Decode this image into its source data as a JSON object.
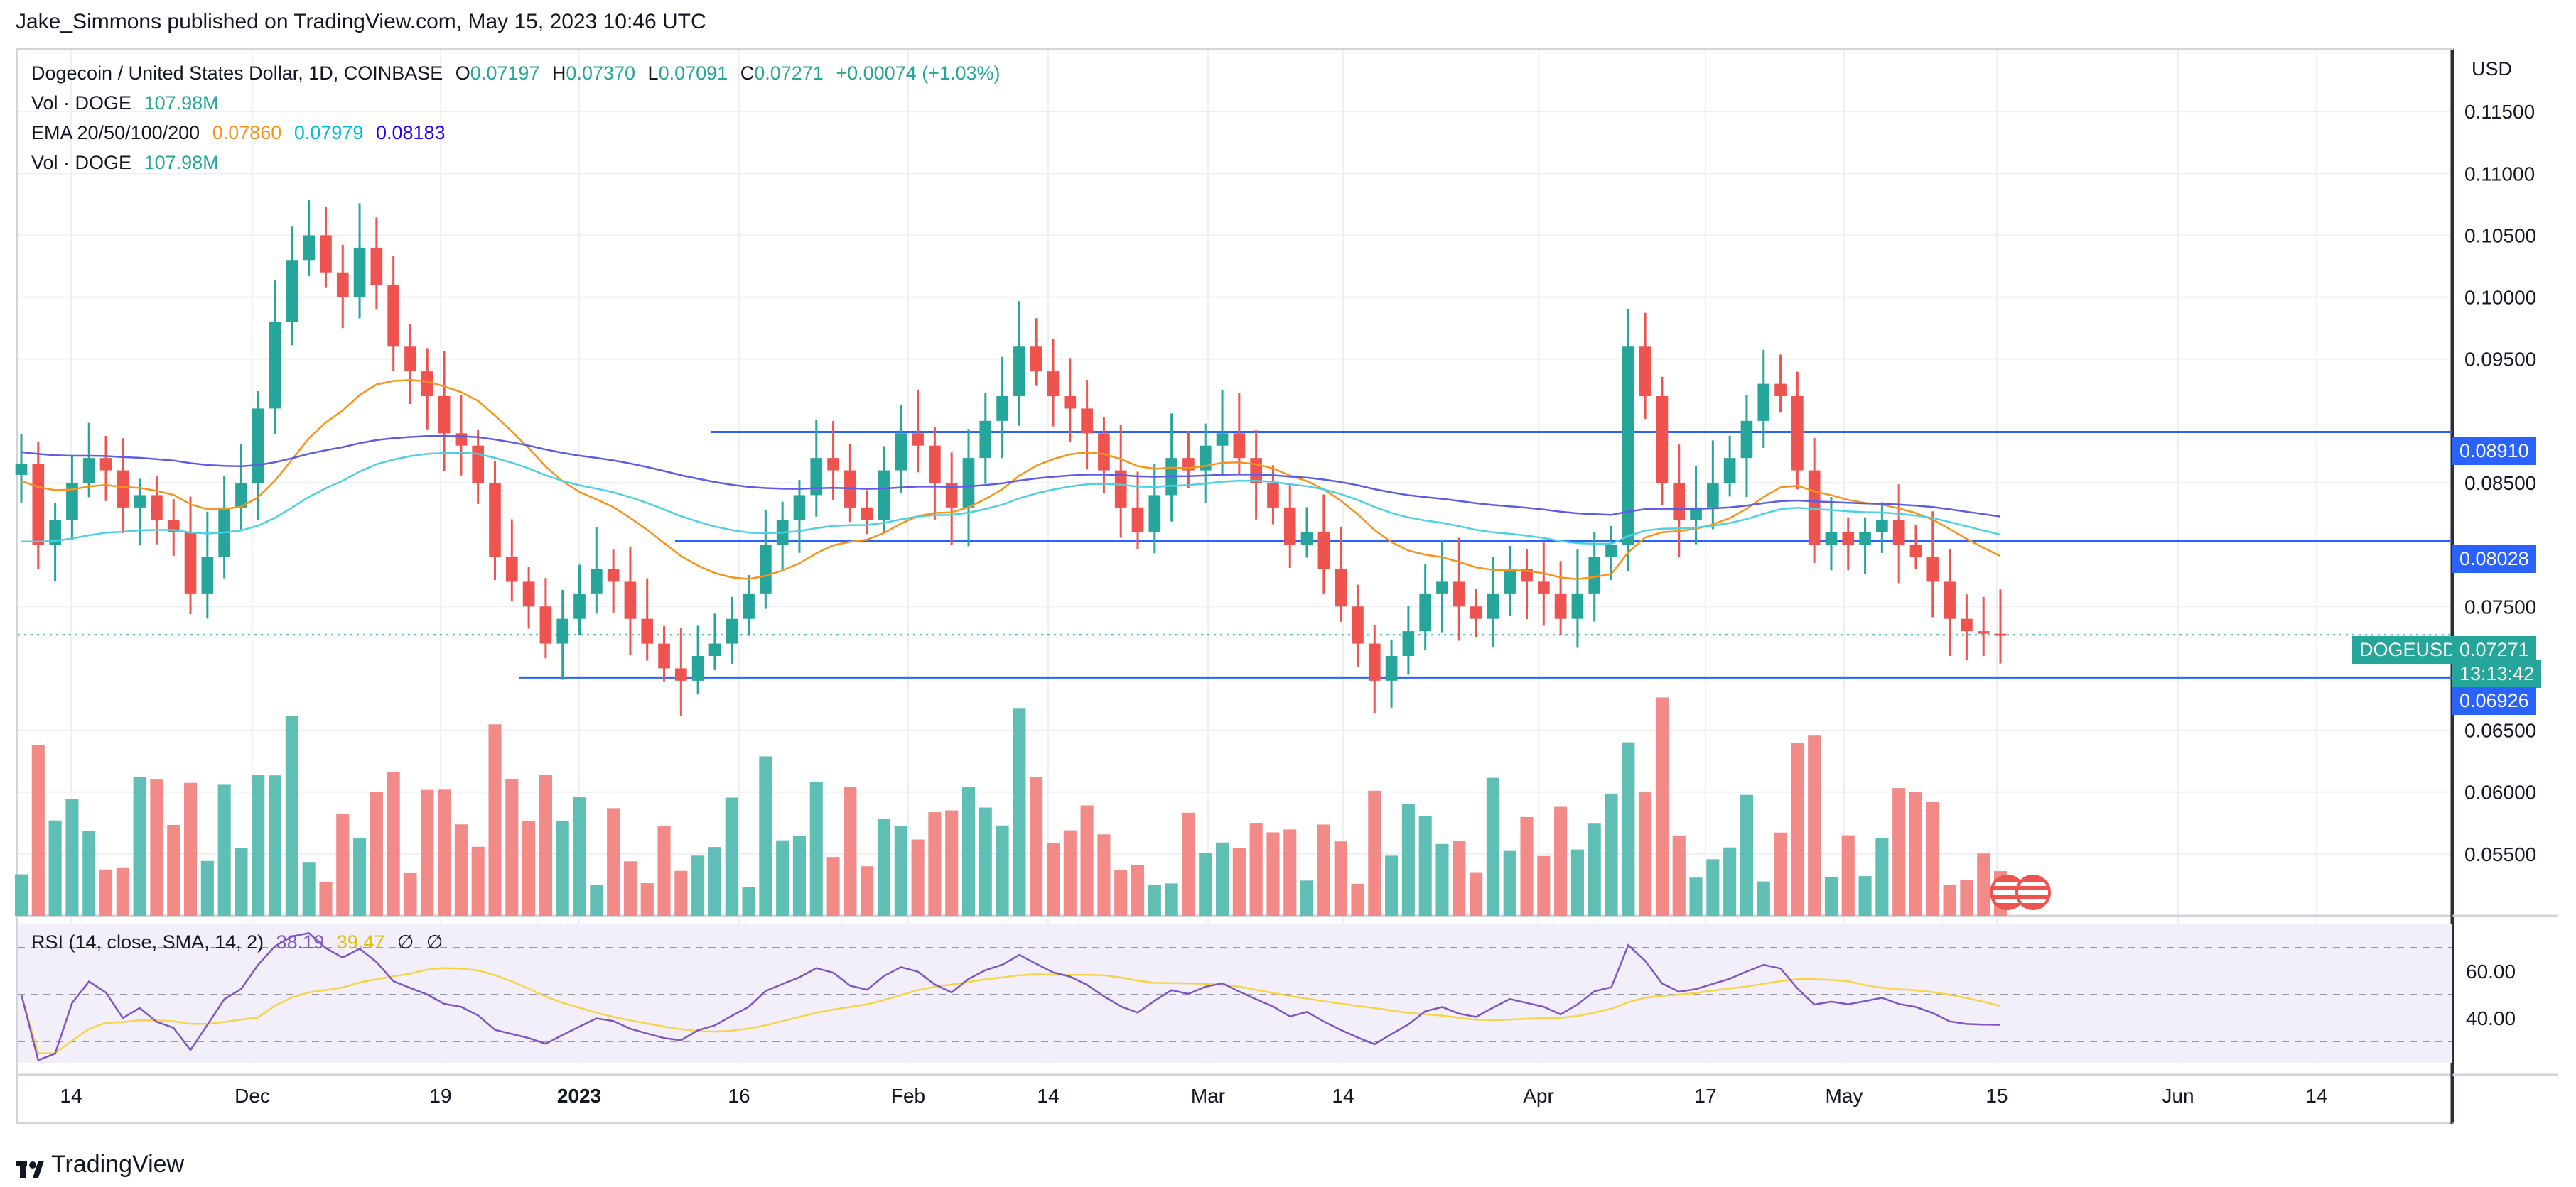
{
  "header": {
    "published_line": "Jake_Simmons published on TradingView.com, May 15, 2023 10:46 UTC"
  },
  "legend": {
    "symbol": "Dogecoin / United States Dollar, 1D, COINBASE",
    "o_label": "O",
    "o_value": "0.07197",
    "h_label": "H",
    "h_value": "0.07370",
    "l_label": "L",
    "l_value": "0.07091",
    "c_label": "C",
    "c_value": "0.07271",
    "change": "+0.00074 (+1.03%)",
    "vol1_label": "Vol · DOGE",
    "vol1_value": "107.98M",
    "ema_label": "EMA 20/50/100/200",
    "ema20": "0.07860",
    "ema50": "0.07979",
    "ema100": "0.08183",
    "vol2_label": "Vol · DOGE",
    "vol2_value": "107.98M",
    "rsi_label": "RSI (14, close, SMA, 14, 2)",
    "rsi_value": "38.19",
    "rsi_sma_value": "39.47",
    "rsi_hidden1": "∅",
    "rsi_hidden2": "∅"
  },
  "price_axis": {
    "currency": "USD"
  },
  "price_tags": {
    "level_high": "0.08910",
    "level_mid": "0.08028",
    "symbol": "DOGEUSD",
    "last": "0.07271",
    "countdown": "13:13:42",
    "level_low": "0.06926"
  },
  "footer": {
    "brand": "TradingView"
  },
  "colors": {
    "up": "#26a69a",
    "down": "#ef5350",
    "ema20": "#f7931a",
    "ema50": "#4dd0e1",
    "ema100": "#5c5ce6",
    "rsi": "#7e57c2",
    "rsi_sma": "#f5d547",
    "hline": "#2962ff",
    "tag": "#2962ff",
    "last": "#26a69a"
  },
  "chart_data": {
    "type": "candlestick",
    "symbol": "DOGEUSD",
    "interval": "1D",
    "x_ticks": [
      "14",
      "Dec",
      "19",
      "2023",
      "16",
      "Feb",
      "14",
      "Mar",
      "14",
      "Apr",
      "17",
      "May",
      "15",
      "Jun",
      "14"
    ],
    "y_ticks": [
      0.115,
      0.11,
      0.105,
      0.1,
      0.095,
      0.085,
      0.075,
      0.065,
      0.06,
      0.055
    ],
    "y_tick_labels": [
      "0.11500",
      "0.11000",
      "0.10500",
      "0.10000",
      "0.09500",
      "0.08500",
      "0.07500",
      "0.06500",
      "0.06000",
      "0.05500"
    ],
    "ylim": [
      0.05,
      0.12
    ],
    "horizontal_levels": [
      0.0891,
      0.08028,
      0.06926
    ],
    "candles_close": [
      0.0865,
      0.08,
      0.082,
      0.085,
      0.087,
      0.086,
      0.083,
      0.084,
      0.082,
      0.081,
      0.076,
      0.079,
      0.083,
      0.085,
      0.091,
      0.098,
      0.103,
      0.105,
      0.102,
      0.1,
      0.104,
      0.101,
      0.096,
      0.094,
      0.092,
      0.089,
      0.088,
      0.085,
      0.079,
      0.077,
      0.075,
      0.072,
      0.074,
      0.076,
      0.078,
      0.077,
      0.074,
      0.072,
      0.07,
      0.069,
      0.071,
      0.072,
      0.074,
      0.076,
      0.08,
      0.082,
      0.084,
      0.087,
      0.086,
      0.083,
      0.082,
      0.086,
      0.089,
      0.088,
      0.085,
      0.083,
      0.087,
      0.09,
      0.092,
      0.096,
      0.094,
      0.092,
      0.091,
      0.089,
      0.086,
      0.083,
      0.081,
      0.084,
      0.087,
      0.086,
      0.088,
      0.089,
      0.087,
      0.085,
      0.083,
      0.08,
      0.081,
      0.078,
      0.075,
      0.072,
      0.069,
      0.071,
      0.073,
      0.076,
      0.077,
      0.075,
      0.074,
      0.076,
      0.078,
      0.077,
      0.076,
      0.074,
      0.076,
      0.079,
      0.08,
      0.096,
      0.092,
      0.085,
      0.082,
      0.083,
      0.085,
      0.087,
      0.09,
      0.093,
      0.092,
      0.086,
      0.08,
      0.081,
      0.08,
      0.081,
      0.082,
      0.08,
      0.079,
      0.077,
      0.074,
      0.073,
      0.0728,
      0.0727
    ],
    "ema": [
      {
        "name": "EMA 20",
        "last": 0.0786
      },
      {
        "name": "EMA 50",
        "last": 0.07979
      },
      {
        "name": "EMA 100",
        "last": 0.08183
      }
    ],
    "rsi": {
      "name": "RSI (14, close, SMA, 14, 2)",
      "last": 38.19,
      "sma_last": 39.47,
      "bands": [
        30,
        50,
        70
      ],
      "y_tick_labels": [
        "60.00",
        "40.00"
      ]
    }
  }
}
